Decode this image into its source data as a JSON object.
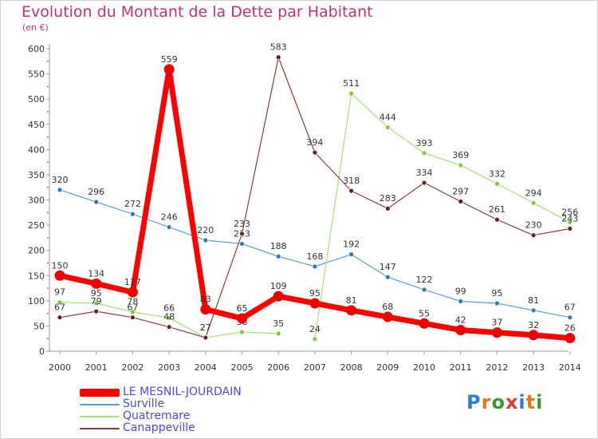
{
  "title": "Evolution du Montant de la Dette par Habitant",
  "subtitle": "(en €)",
  "logo": {
    "text": "Proxiti",
    "colors": [
      "#2a7fd4",
      "#e07b1f",
      "#3b9a2e",
      "#e03a2e",
      "#2a7fd4",
      "#e07b1f",
      "#3b9a2e"
    ]
  },
  "chart_data": {
    "type": "line",
    "title": "Evolution du Montant de la Dette par Habitant",
    "ylabel": "(en €)",
    "xlabel": "",
    "ylim": [
      0,
      600
    ],
    "yticks": [
      "0",
      "50",
      "100",
      "150",
      "200",
      "250",
      "300",
      "350",
      "400",
      "450",
      "500",
      "550",
      "600"
    ],
    "categories": [
      "2000",
      "2001",
      "2002",
      "2003",
      "2004",
      "2005",
      "2006",
      "2007",
      "2008",
      "2009",
      "2010",
      "2011",
      "2012",
      "2013",
      "2014"
    ],
    "grid": false,
    "legend": "bottom-left",
    "series": [
      {
        "name": "Surville",
        "color": "#5b9bd5",
        "dot": "#2f78b8",
        "width": 1.2,
        "radius": 3,
        "values": [
          320,
          296,
          272,
          246,
          220,
          213,
          188,
          168,
          192,
          147,
          122,
          99,
          95,
          81,
          67
        ]
      },
      {
        "name": "Quatremare",
        "color": "#a8e07a",
        "dot": "#7ccc3a",
        "width": 1.2,
        "radius": 3,
        "values": [
          97,
          95,
          78,
          66,
          27,
          38,
          35,
          24,
          511,
          444,
          393,
          369,
          332,
          294,
          256
        ],
        "breaks": [
          6
        ]
      },
      {
        "name": "Canappeville",
        "color": "#8b3a3a",
        "dot": "#6b1f1f",
        "width": 1.2,
        "radius": 3,
        "values": [
          67,
          79,
          67,
          48,
          27,
          233,
          583,
          394,
          318,
          283,
          334,
          297,
          261,
          230,
          243
        ]
      },
      {
        "name": "LE MESNIL-JOURDAIN",
        "color": "#ff0000",
        "dot": "#ee0000",
        "width": 7,
        "radius": 6.5,
        "values": [
          150,
          134,
          117,
          559,
          83,
          65,
          109,
          95,
          81,
          68,
          55,
          42,
          37,
          32,
          26
        ]
      }
    ],
    "legend_order": [
      "LE MESNIL-JOURDAIN",
      "Surville",
      "Quatremare",
      "Canappeville"
    ]
  }
}
